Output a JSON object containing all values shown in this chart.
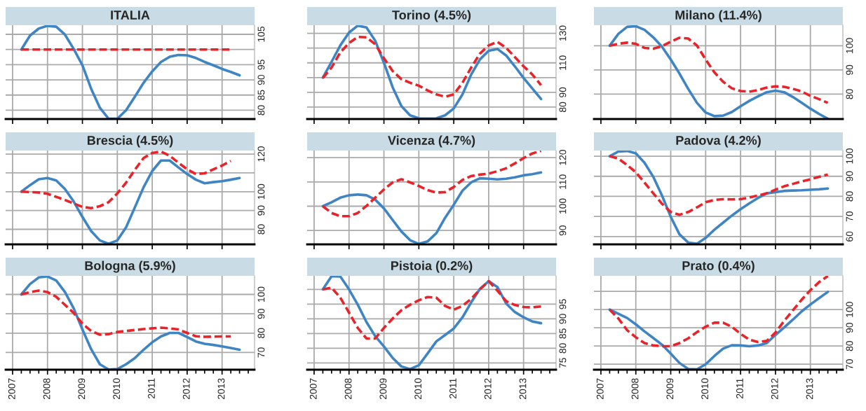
{
  "chart_data": [
    {
      "type": "line",
      "title": "ITALIA",
      "x": [
        2007.25,
        2007.5,
        2007.75,
        2008,
        2008.25,
        2008.5,
        2008.75,
        2009,
        2009.25,
        2009.5,
        2009.75,
        2010,
        2010.25,
        2010.5,
        2010.75,
        2011,
        2011.25,
        2011.5,
        2011.75,
        2012,
        2012.25,
        2012.5,
        2012.75,
        2013,
        2013.25,
        2013.5
      ],
      "xlim": [
        2006.8,
        2013.93
      ],
      "xticks": [
        2007,
        2008,
        2009,
        2010,
        2011,
        2012,
        2013
      ],
      "ylim": [
        77.1,
        108
      ],
      "yticks": [
        80,
        85,
        90,
        95,
        {
          "value": 100,
          "label": null
        },
        105
      ],
      "grid": true,
      "tick_labels": "y",
      "series": [
        {
          "color": "#3f84c3",
          "values": [
            100,
            104.6,
            106.9,
            107.8,
            107.5,
            104.9,
            100.2,
            94.8,
            87.1,
            80.8,
            77.2,
            77.2,
            80,
            84.4,
            89,
            92.8,
            95.9,
            97.6,
            98.2,
            98.1,
            97.2,
            95.9,
            94.8,
            93.6,
            92.6,
            91.5
          ]
        },
        {
          "color": "#e8232a",
          "line_style": "dashed",
          "x": [
            2007.25,
            2013.25
          ],
          "values": [
            100,
            100
          ]
        }
      ]
    },
    {
      "type": "line",
      "title": "Torino (4.5%)",
      "x": [
        2007.25,
        2007.5,
        2007.75,
        2008,
        2008.25,
        2008.5,
        2008.75,
        2009,
        2009.25,
        2009.5,
        2009.75,
        2010,
        2010.25,
        2010.5,
        2010.75,
        2011,
        2011.25,
        2011.5,
        2011.75,
        2012,
        2012.25,
        2012.5,
        2012.75,
        2013,
        2013.25,
        2013.5
      ],
      "xlim": [
        2006.8,
        2013.93
      ],
      "xticks": [
        2007,
        2008,
        2009,
        2010,
        2011,
        2012,
        2013
      ],
      "ylim": [
        71.9,
        135.5
      ],
      "yticks": [
        80,
        90,
        {
          "value": 100,
          "label": null
        },
        110,
        {
          "value": 120,
          "label": null
        },
        130
      ],
      "grid": true,
      "tick_labels": "y",
      "series": [
        {
          "color": "#3f84c3",
          "values": [
            100,
            110.7,
            121.8,
            130.5,
            135.2,
            134,
            125,
            110,
            93.4,
            80.7,
            74.4,
            72.4,
            72.2,
            72.4,
            74.4,
            79.1,
            88.6,
            102.1,
            112.3,
            118.2,
            119.4,
            115,
            107.6,
            99.7,
            92.6,
            85.5
          ]
        },
        {
          "color": "#e8232a",
          "line_style": "dashed",
          "values": [
            99.7,
            106.8,
            117.1,
            123.4,
            127.6,
            127.3,
            122.6,
            113.1,
            104.4,
            98.9,
            96.5,
            94.5,
            91.3,
            88.6,
            87,
            88.6,
            96.5,
            106.8,
            116.3,
            121.8,
            124.2,
            120.2,
            113.9,
            107.6,
            102.1,
            94.9
          ]
        }
      ]
    },
    {
      "type": "line",
      "title": "Milano (11.4%)",
      "x": [
        2007.25,
        2007.5,
        2007.75,
        2008,
        2008.25,
        2008.5,
        2008.75,
        2009,
        2009.25,
        2009.5,
        2009.75,
        2010,
        2010.25,
        2010.5,
        2010.75,
        2011,
        2011.25,
        2011.5,
        2011.75,
        2012,
        2012.25,
        2012.5,
        2012.75,
        2013,
        2013.25,
        2013.5
      ],
      "xlim": [
        2006.8,
        2013.93
      ],
      "xticks": [
        2007,
        2008,
        2009,
        2010,
        2011,
        2012,
        2013
      ],
      "ylim": [
        69.7,
        108.5
      ],
      "yticks": [
        80,
        90,
        100
      ],
      "grid": true,
      "tick_labels": "y",
      "series": [
        {
          "color": "#3f84c3",
          "values": [
            100,
            104.9,
            107.8,
            108.1,
            106.6,
            103.5,
            99.6,
            94.3,
            88.5,
            82.2,
            76.4,
            72.4,
            70.9,
            71.1,
            72.6,
            75,
            77.2,
            79.1,
            80.8,
            81.4,
            80.8,
            78.8,
            76.4,
            74,
            71.8,
            69.8
          ]
        },
        {
          "color": "#e8232a",
          "line_style": "dashed",
          "values": [
            100,
            100.8,
            101.3,
            100.8,
            99.1,
            98.8,
            99.8,
            101.7,
            103.3,
            103,
            100.1,
            94.3,
            89,
            85.1,
            82.4,
            81.3,
            81,
            81.7,
            82.7,
            83.2,
            83,
            82.2,
            81.1,
            79.3,
            77.9,
            76.4
          ]
        }
      ]
    },
    {
      "type": "line",
      "title": "Brescia (4.5%)",
      "x": [
        2007.25,
        2007.5,
        2007.75,
        2008,
        2008.25,
        2008.5,
        2008.75,
        2009,
        2009.25,
        2009.5,
        2009.75,
        2010,
        2010.25,
        2010.5,
        2010.75,
        2011,
        2011.25,
        2011.5,
        2011.75,
        2012,
        2012.25,
        2012.5,
        2012.75,
        2013,
        2013.25,
        2013.5
      ],
      "xlim": [
        2006.8,
        2013.93
      ],
      "xticks": [
        2007,
        2008,
        2009,
        2010,
        2011,
        2012,
        2013
      ],
      "ylim": [
        72,
        121.9
      ],
      "yticks": [
        80,
        90,
        100,
        {
          "value": 110,
          "label": null
        },
        120
      ],
      "grid": true,
      "tick_labels": "y",
      "series": [
        {
          "color": "#3f84c3",
          "values": [
            100,
            103.5,
            106.6,
            107.3,
            106,
            101.4,
            94.8,
            86.6,
            79.1,
            74.1,
            72.3,
            74.1,
            81,
            91.6,
            102.3,
            111,
            116.6,
            116.6,
            112.9,
            109.4,
            106.4,
            104.5,
            105.1,
            105.6,
            106.4,
            107.3
          ]
        },
        {
          "color": "#e8232a",
          "line_style": "dashed",
          "x": [
            2007.25,
            2007.75,
            2008,
            2008.5,
            2009,
            2009.25,
            2009.5,
            2009.75,
            2010,
            2010.25,
            2010.5,
            2010.75,
            2011,
            2011.25,
            2011.5,
            2011.75,
            2012,
            2012.25,
            2012.5,
            2012.75,
            2013,
            2013.25
          ],
          "values": [
            100,
            99.6,
            98.9,
            95.6,
            91.9,
            91.3,
            92.3,
            94.4,
            99.1,
            104.8,
            111.6,
            117.9,
            120.6,
            121.4,
            119.1,
            115.4,
            111.9,
            109.4,
            109.8,
            111.9,
            113.9,
            116.4
          ]
        }
      ]
    },
    {
      "type": "line",
      "title": "Vicenza (4.7%)",
      "x": [
        2007.25,
        2007.5,
        2007.75,
        2008,
        2008.25,
        2008.5,
        2008.75,
        2009,
        2009.25,
        2009.5,
        2009.75,
        2010,
        2010.25,
        2010.5,
        2010.75,
        2011,
        2011.25,
        2011.5,
        2011.75,
        2012,
        2012.25,
        2012.5,
        2012.75,
        2013,
        2013.25,
        2013.5
      ],
      "xlim": [
        2006.8,
        2013.93
      ],
      "xticks": [
        2007,
        2008,
        2009,
        2010,
        2011,
        2012,
        2013
      ],
      "ylim": [
        84.3,
        122.9
      ],
      "yticks": [
        90,
        100,
        110,
        120
      ],
      "grid": true,
      "tick_labels": "y",
      "series": [
        {
          "color": "#3f84c3",
          "values": [
            100,
            101.6,
            103.5,
            104.5,
            104.8,
            104.5,
            102.7,
            99.1,
            94.3,
            89.6,
            86,
            84.5,
            85.5,
            88.9,
            95.2,
            100.6,
            106.4,
            109.8,
            111.5,
            111.3,
            111,
            111.3,
            111.9,
            112.7,
            113.2,
            113.9
          ]
        },
        {
          "color": "#e8232a",
          "line_style": "dashed",
          "values": [
            100,
            97.2,
            95.9,
            95.9,
            97.2,
            100.1,
            103.5,
            106.9,
            109.8,
            111.1,
            109.8,
            108.3,
            106.6,
            105.6,
            105.8,
            107.9,
            110.8,
            112.4,
            113,
            113.4,
            114.4,
            115.6,
            117.6,
            119.8,
            121.7,
            122.8
          ]
        }
      ]
    },
    {
      "type": "line",
      "title": "Padova (4.2%)",
      "x": [
        2007.25,
        2007.5,
        2007.75,
        2008,
        2008.25,
        2008.5,
        2008.75,
        2009,
        2009.25,
        2009.5,
        2009.75,
        2010,
        2010.25,
        2010.5,
        2010.75,
        2011,
        2011.25,
        2011.5,
        2011.75,
        2012,
        2012.25,
        2012.5,
        2012.75,
        2013,
        2013.25,
        2013.5
      ],
      "xlim": [
        2006.8,
        2013.93
      ],
      "xticks": [
        2007,
        2008,
        2009,
        2010,
        2011,
        2012,
        2013
      ],
      "ylim": [
        56.1,
        102.8
      ],
      "yticks": [
        60,
        70,
        80,
        90,
        100
      ],
      "grid": true,
      "tick_labels": "y",
      "series": [
        {
          "color": "#3f84c3",
          "values": [
            100,
            102.3,
            102.6,
            101.4,
            96.7,
            89.7,
            80.4,
            69.8,
            61.1,
            57,
            56.4,
            59.3,
            63.4,
            66.9,
            70.4,
            73.6,
            76.5,
            79.2,
            81.5,
            82.1,
            82.7,
            82.9,
            83,
            83.3,
            83.5,
            83.9
          ]
        },
        {
          "color": "#e8232a",
          "line_style": "dashed",
          "values": [
            100,
            98.8,
            95.6,
            92,
            86.8,
            81.5,
            76.3,
            72.2,
            70.8,
            72.2,
            74.5,
            77.1,
            78.2,
            78.6,
            78.5,
            78.6,
            79.4,
            80.4,
            81.5,
            83.3,
            85,
            86.2,
            87.4,
            88.5,
            89.7,
            90.9
          ]
        }
      ]
    },
    {
      "type": "line",
      "title": "Bologna (5.9%)",
      "x": [
        2007.25,
        2007.5,
        2007.75,
        2008,
        2008.25,
        2008.5,
        2008.75,
        2009,
        2009.25,
        2009.5,
        2009.75,
        2010,
        2010.25,
        2010.5,
        2010.75,
        2011,
        2011.25,
        2011.5,
        2011.75,
        2012,
        2012.25,
        2012.5,
        2012.75,
        2013,
        2013.25,
        2013.5
      ],
      "xlim": [
        2006.8,
        2013.93
      ],
      "xticks": [
        2007,
        {
          "value": 2007.25,
          "label": null
        },
        {
          "value": 2007.5,
          "label": null
        },
        {
          "value": 2007.75,
          "label": null
        },
        2008,
        {
          "value": 2008.25,
          "label": null
        },
        {
          "value": 2008.5,
          "label": null
        },
        {
          "value": 2008.75,
          "label": null
        },
        2009,
        {
          "value": 2009.25,
          "label": null
        },
        {
          "value": 2009.5,
          "label": null
        },
        {
          "value": 2009.75,
          "label": null
        },
        2010,
        {
          "value": 2010.25,
          "label": null
        },
        {
          "value": 2010.5,
          "label": null
        },
        {
          "value": 2010.75,
          "label": null
        },
        2011,
        {
          "value": 2011.25,
          "label": null
        },
        {
          "value": 2011.5,
          "label": null
        },
        {
          "value": 2011.75,
          "label": null
        },
        2012,
        {
          "value": 2012.25,
          "label": null
        },
        {
          "value": 2012.5,
          "label": null
        },
        {
          "value": 2012.75,
          "label": null
        },
        2013,
        {
          "value": 2013.25,
          "label": null
        },
        {
          "value": 2013.5,
          "label": null
        },
        {
          "value": 2013.75,
          "label": null
        }
      ],
      "ylim": [
        61.1,
        109.6
      ],
      "yticks": [
        70,
        80,
        90,
        100
      ],
      "grid": true,
      "series": [
        {
          "color": "#3f84c3",
          "values": [
            100,
            105.4,
            108.8,
            109.3,
            107.2,
            101.2,
            92.8,
            81.9,
            71.7,
            63.9,
            61.2,
            61.4,
            63.9,
            67.1,
            71.4,
            75.3,
            78.3,
            80.1,
            80.1,
            78,
            75.7,
            74.5,
            73.9,
            73.1,
            72.3,
            71.4
          ]
        },
        {
          "color": "#e8232a",
          "line_style": "dashed",
          "x": [
            2007.25,
            2007.5,
            2007.75,
            2008,
            2008.25,
            2008.5,
            2008.75,
            2009,
            2009.25,
            2009.5,
            2009.75,
            2010,
            2010.25,
            2010.5,
            2010.75,
            2011,
            2011.25,
            2011.5,
            2011.75,
            2012,
            2012.25,
            2012.5,
            2012.75,
            2013,
            2013.25
          ],
          "values": [
            100,
            101.2,
            102,
            101.2,
            98.8,
            94.6,
            90.4,
            84.9,
            81.1,
            79.2,
            79.5,
            80.6,
            81.1,
            81.6,
            82.1,
            82.5,
            82.8,
            82.5,
            81.9,
            80.1,
            78.4,
            78.1,
            78.2,
            78.3,
            78.3
          ]
        }
      ]
    },
    {
      "type": "line",
      "title": "Pistoia (0.2%)",
      "x": [
        2007.25,
        2007.5,
        2007.75,
        2008,
        2008.25,
        2008.5,
        2008.75,
        2009,
        2009.25,
        2009.5,
        2009.75,
        2010,
        2010.25,
        2010.5,
        2010.75,
        2011,
        2011.25,
        2011.5,
        2011.75,
        2012,
        2012.25,
        2012.5,
        2012.75,
        2013,
        2013.25,
        2013.5
      ],
      "xlim": [
        2006.8,
        2013.93
      ],
      "xticks": [
        2007,
        {
          "value": 2007.25,
          "label": null
        },
        {
          "value": 2007.5,
          "label": null
        },
        {
          "value": 2007.75,
          "label": null
        },
        2008,
        {
          "value": 2008.25,
          "label": null
        },
        {
          "value": 2008.5,
          "label": null
        },
        {
          "value": 2008.75,
          "label": null
        },
        2009,
        {
          "value": 2009.25,
          "label": null
        },
        {
          "value": 2009.5,
          "label": null
        },
        {
          "value": 2009.75,
          "label": null
        },
        2010,
        {
          "value": 2010.25,
          "label": null
        },
        {
          "value": 2010.5,
          "label": null
        },
        {
          "value": 2010.75,
          "label": null
        },
        2011,
        {
          "value": 2011.25,
          "label": null
        },
        {
          "value": 2011.5,
          "label": null
        },
        {
          "value": 2011.75,
          "label": null
        },
        2012,
        {
          "value": 2012.25,
          "label": null
        },
        {
          "value": 2012.5,
          "label": null
        },
        {
          "value": 2012.75,
          "label": null
        },
        2013,
        {
          "value": 2013.25,
          "label": null
        },
        {
          "value": 2013.5,
          "label": null
        },
        {
          "value": 2013.75,
          "label": null
        }
      ],
      "ylim": [
        72.7,
        104.6
      ],
      "yticks": [
        75,
        80,
        85,
        90,
        95,
        {
          "value": 100,
          "label": null
        }
      ],
      "grid": true,
      "series": [
        {
          "color": "#3f84c3",
          "values": [
            100,
            104.5,
            104.4,
            100,
            94.8,
            88.9,
            84.1,
            80.6,
            76.7,
            73.8,
            72.9,
            74.2,
            78.2,
            82.3,
            84.5,
            86.7,
            90.5,
            95.6,
            100.2,
            102.8,
            100.8,
            95.2,
            92.3,
            90.5,
            89.1,
            88.5
          ]
        },
        {
          "color": "#e8232a",
          "line_style": "dashed",
          "values": [
            100,
            100.6,
            97.2,
            92.1,
            86.9,
            83.3,
            83.3,
            86.9,
            90.1,
            92.9,
            94.8,
            96.3,
            97.4,
            97.2,
            94.4,
            93.1,
            94.4,
            96.8,
            100,
            102.8,
            99.6,
            96,
            94.7,
            94,
            93.9,
            94.2
          ]
        }
      ]
    },
    {
      "type": "line",
      "title": "Prato (0.4%)",
      "x": [
        2007.25,
        2007.5,
        2007.75,
        2008,
        2008.25,
        2008.5,
        2008.75,
        2009,
        2009.25,
        2009.5,
        2009.75,
        2010,
        2010.25,
        2010.5,
        2010.75,
        2011,
        2011.25,
        2011.5,
        2011.75,
        2012,
        2012.25,
        2012.5,
        2012.75,
        2013,
        2013.25,
        2013.5
      ],
      "xlim": [
        2006.8,
        2013.93
      ],
      "xticks": [
        2007,
        {
          "value": 2007.25,
          "label": null
        },
        {
          "value": 2007.5,
          "label": null
        },
        {
          "value": 2007.75,
          "label": null
        },
        2008,
        {
          "value": 2008.25,
          "label": null
        },
        {
          "value": 2008.5,
          "label": null
        },
        {
          "value": 2008.75,
          "label": null
        },
        2009,
        {
          "value": 2009.25,
          "label": null
        },
        {
          "value": 2009.5,
          "label": null
        },
        {
          "value": 2009.75,
          "label": null
        },
        2010,
        {
          "value": 2010.25,
          "label": null
        },
        {
          "value": 2010.5,
          "label": null
        },
        {
          "value": 2010.75,
          "label": null
        },
        2011,
        {
          "value": 2011.25,
          "label": null
        },
        {
          "value": 2011.5,
          "label": null
        },
        {
          "value": 2011.75,
          "label": null
        },
        2012,
        {
          "value": 2012.25,
          "label": null
        },
        {
          "value": 2012.5,
          "label": null
        },
        {
          "value": 2012.75,
          "label": null
        },
        2013,
        {
          "value": 2013.25,
          "label": null
        },
        {
          "value": 2013.5,
          "label": null
        },
        {
          "value": 2013.75,
          "label": null
        }
      ],
      "ylim": [
        67,
        118.5
      ],
      "yticks": [
        70,
        80,
        90,
        100,
        {
          "value": 110,
          "label": null
        }
      ],
      "grid": true,
      "series": [
        {
          "color": "#3f84c3",
          "values": [
            100,
            97.7,
            95.4,
            91.9,
            88,
            84.4,
            80.7,
            75.8,
            70.7,
            67.4,
            67.2,
            70,
            74.5,
            78.6,
            80.4,
            80.3,
            79.9,
            80.3,
            81.6,
            86.1,
            90.2,
            94.5,
            99,
            102.8,
            106.3,
            109.7
          ]
        },
        {
          "color": "#e8232a",
          "line_style": "dashed",
          "values": [
            100,
            95.1,
            88.7,
            84.8,
            81.6,
            80.3,
            79.9,
            79.9,
            81.6,
            84.2,
            87.6,
            90.6,
            92.8,
            92.8,
            90.6,
            86.7,
            83.5,
            82.2,
            82.8,
            87.4,
            93.8,
            99.6,
            105.4,
            110.6,
            115.1,
            118.4
          ]
        }
      ]
    }
  ]
}
